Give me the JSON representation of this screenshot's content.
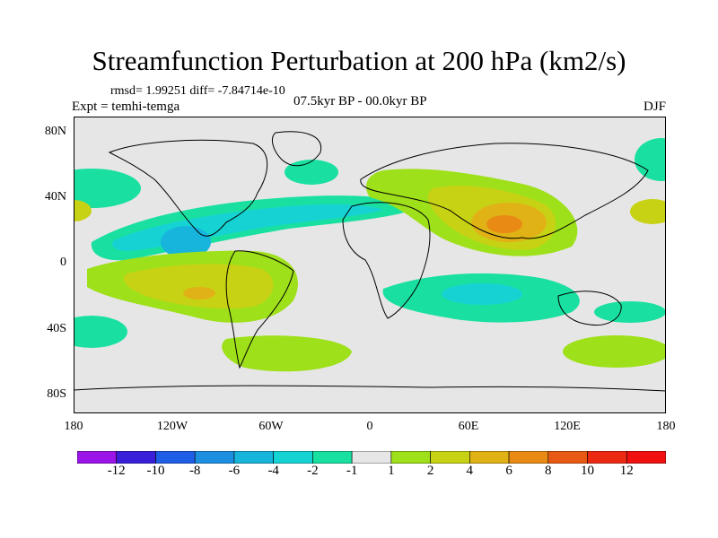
{
  "header": {
    "title": "Streamfunction Perturbation at 200 hPa (km2/s)",
    "stats": "rmsd= 1.99251 diff= -7.84714e-10",
    "experiment": "Expt = temhi-temga",
    "period": "07.5kyr BP - 00.0kyr BP",
    "season": "DJF"
  },
  "axes": {
    "lat_labels": [
      "80N",
      "40N",
      "0",
      "40S",
      "80S"
    ],
    "lon_labels": [
      "180",
      "120W",
      "60W",
      "0",
      "60E",
      "120E",
      "180"
    ]
  },
  "colorbar": {
    "labels": [
      "-12",
      "-10",
      "-8",
      "-6",
      "-4",
      "-2",
      "-1",
      "1",
      "2",
      "4",
      "6",
      "8",
      "10",
      "12"
    ],
    "colors": [
      "#9b14e8",
      "#3a1fd8",
      "#1f5ee6",
      "#1c8fe0",
      "#17b4dc",
      "#16d3d3",
      "#19e0a0",
      "#e6e6e6",
      "#9ee019",
      "#c8d214",
      "#e0b216",
      "#e88a14",
      "#e85a14",
      "#ec2a14",
      "#f01010"
    ]
  },
  "colors": {
    "background": "#ffffff",
    "neutral_fill": "#e6e6e6",
    "coast": "#000000"
  }
}
